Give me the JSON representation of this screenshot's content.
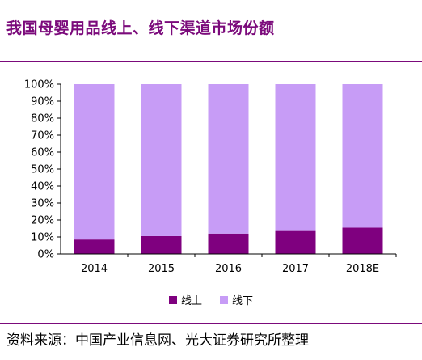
{
  "header": {
    "title": "我国母婴用品线上、线下渠道市场份额"
  },
  "chart_data": {
    "type": "bar",
    "stacked": true,
    "categories": [
      "2014",
      "2015",
      "2016",
      "2017",
      "2018E"
    ],
    "series": [
      {
        "name": "线上",
        "color": "#7f007f",
        "values": [
          8.5,
          10.5,
          12,
          14,
          15.5
        ]
      },
      {
        "name": "线下",
        "color": "#c79cf6",
        "values": [
          91.5,
          89.5,
          88,
          86,
          84.5
        ]
      }
    ],
    "ylim": [
      0,
      100
    ],
    "yticks": [
      "0%",
      "10%",
      "20%",
      "30%",
      "40%",
      "50%",
      "60%",
      "70%",
      "80%",
      "90%",
      "100%"
    ],
    "grid": false,
    "legend_position": "bottom"
  },
  "footer": {
    "source": "资料来源：中国产业信息网、光大证券研究所整理"
  }
}
